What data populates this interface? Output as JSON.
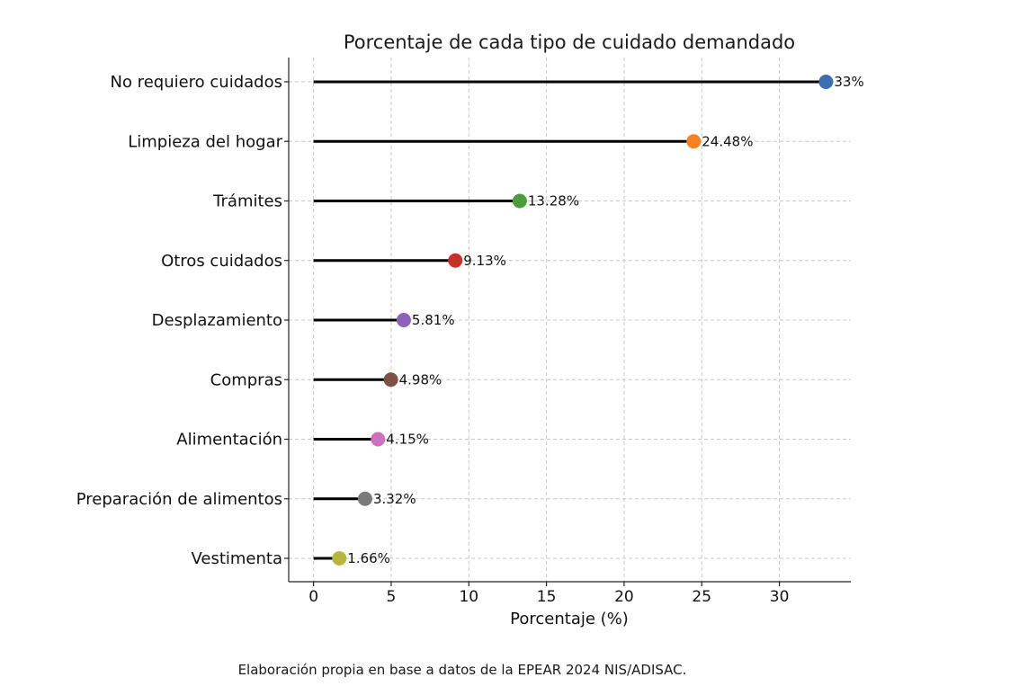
{
  "chart_data": {
    "type": "lollipop",
    "title": "Porcentaje de cada tipo de cuidado demandado",
    "xlabel": "Porcentaje (%)",
    "ylabel": "",
    "xlim": [
      -1.6,
      34.6
    ],
    "xticks": [
      0,
      5,
      10,
      15,
      20,
      25,
      30
    ],
    "grid": true,
    "categories": [
      "No requiero cuidados",
      "Limpieza del hogar",
      "Trámites",
      "Otros cuidados",
      "Desplazamiento",
      "Compras",
      "Alimentación",
      "Preparación de alimentos",
      "Vestimenta"
    ],
    "values": [
      33,
      24.48,
      13.28,
      9.13,
      5.81,
      4.98,
      4.15,
      3.32,
      1.66
    ],
    "value_labels": [
      "33%",
      "24.48%",
      "13.28%",
      "9.13%",
      "5.81%",
      "4.98%",
      "4.15%",
      "3.32%",
      "1.66%"
    ],
    "colors": [
      "#3a70b0",
      "#f58220",
      "#4a9d3a",
      "#c8302c",
      "#8a63b8",
      "#7d5148",
      "#d070c0",
      "#7a7a7a",
      "#b5b83a"
    ]
  },
  "source_note": "Elaboración propia en base a datos de la EPEAR 2024 NIS/ADISAC."
}
